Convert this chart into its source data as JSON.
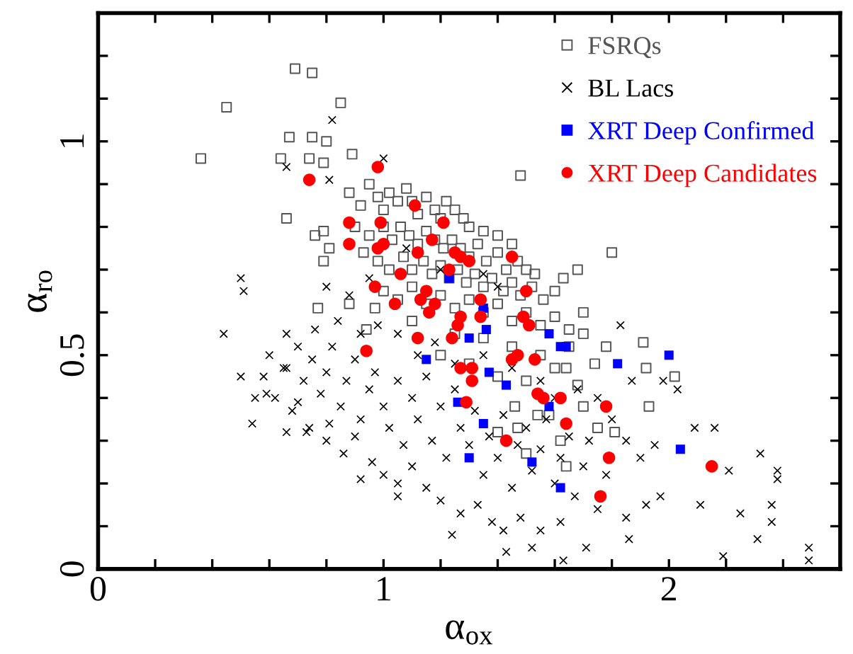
{
  "chart_data": {
    "type": "scatter",
    "xlabel": "α$_{ox}$",
    "ylabel": "α$_{ro}$",
    "xlim": [
      0,
      2.6
    ],
    "ylim": [
      0,
      1.3
    ],
    "xticks": [
      0,
      {
        "value": 0.2,
        "label": null
      },
      {
        "value": 0.4,
        "label": null
      },
      {
        "value": 0.6,
        "label": null
      },
      {
        "value": 0.8,
        "label": null
      },
      1,
      {
        "value": 1.2,
        "label": null
      },
      {
        "value": 1.4,
        "label": null
      },
      {
        "value": 1.6,
        "label": null
      },
      {
        "value": 1.8,
        "label": null
      },
      2,
      {
        "value": 2.2,
        "label": null
      },
      {
        "value": 2.4,
        "label": null
      }
    ],
    "yticks": [
      0,
      {
        "value": 0.1,
        "label": null
      },
      {
        "value": 0.2,
        "label": null
      },
      {
        "value": 0.3,
        "label": null
      },
      {
        "value": 0.4,
        "label": null
      },
      0.5,
      {
        "value": 0.6,
        "label": null
      },
      {
        "value": 0.7,
        "label": null
      },
      {
        "value": 0.8,
        "label": null
      },
      {
        "value": 0.9,
        "label": null
      },
      1,
      {
        "value": 1.1,
        "label": null
      },
      {
        "value": 1.2,
        "label": null
      }
    ],
    "grid": false,
    "legend": "top right",
    "series": [
      {
        "name": "FSRQs",
        "color": "#555555",
        "marker": "square",
        "x": [
          0.36,
          0.45,
          0.69,
          0.75,
          0.85,
          0.67,
          0.75,
          0.8,
          0.64,
          0.74,
          0.79,
          0.89,
          0.66,
          0.76,
          0.79,
          0.81,
          0.79,
          0.77,
          0.94,
          0.88,
          1.48,
          1.8,
          1.68,
          1.63,
          1.91,
          1.92,
          2.02,
          1.93,
          1.81,
          1.78,
          1.74,
          1.7,
          1.64,
          1.54,
          1.47,
          1.64,
          0.88,
          0.92,
          0.95,
          0.98,
          1.0,
          1.02,
          1.05,
          1.08,
          1.1,
          1.12,
          1.15,
          1.18,
          1.2,
          1.22,
          1.25,
          1.28,
          1.3,
          1.35,
          1.4,
          1.45,
          0.9,
          0.95,
          1.0,
          1.03,
          1.06,
          1.09,
          1.12,
          1.15,
          1.18,
          1.21,
          1.24,
          1.27,
          1.3,
          1.33,
          1.36,
          1.4,
          1.43,
          1.47,
          1.5,
          1.53,
          0.93,
          0.98,
          1.02,
          1.07,
          1.1,
          1.14,
          1.17,
          1.2,
          1.23,
          1.26,
          1.29,
          1.32,
          1.35,
          1.38,
          1.42,
          1.45,
          1.48,
          1.52,
          1.56,
          1.6,
          1.0,
          1.05,
          1.1,
          1.15,
          1.2,
          1.25,
          1.3,
          1.35,
          1.4,
          1.45,
          1.5,
          1.55,
          1.6,
          1.65,
          1.25,
          1.35,
          1.45,
          1.55,
          1.65,
          1.7,
          1.3,
          1.4,
          1.5,
          1.6,
          1.68,
          1.1,
          0.97,
          1.2,
          1.46,
          1.58,
          1.7,
          1.75,
          1.62,
          1.5,
          1.4
        ],
        "values": [
          0.96,
          1.08,
          1.17,
          1.16,
          1.09,
          1.01,
          1.01,
          1.0,
          0.96,
          0.96,
          0.95,
          0.97,
          0.82,
          0.78,
          0.79,
          0.75,
          0.72,
          0.61,
          0.56,
          0.62,
          0.92,
          0.74,
          0.7,
          0.68,
          0.53,
          0.47,
          0.45,
          0.38,
          0.32,
          0.52,
          0.48,
          0.6,
          0.47,
          0.36,
          0.33,
          0.24,
          0.88,
          0.85,
          0.9,
          0.87,
          0.84,
          0.88,
          0.86,
          0.89,
          0.86,
          0.83,
          0.87,
          0.84,
          0.82,
          0.86,
          0.84,
          0.82,
          0.8,
          0.79,
          0.78,
          0.76,
          0.8,
          0.78,
          0.8,
          0.77,
          0.8,
          0.78,
          0.76,
          0.79,
          0.77,
          0.75,
          0.77,
          0.75,
          0.73,
          0.76,
          0.72,
          0.74,
          0.7,
          0.72,
          0.7,
          0.69,
          0.74,
          0.72,
          0.7,
          0.73,
          0.7,
          0.72,
          0.69,
          0.71,
          0.68,
          0.7,
          0.67,
          0.69,
          0.66,
          0.68,
          0.65,
          0.67,
          0.64,
          0.66,
          0.63,
          0.65,
          0.65,
          0.63,
          0.66,
          0.62,
          0.64,
          0.61,
          0.63,
          0.6,
          0.62,
          0.58,
          0.6,
          0.57,
          0.59,
          0.56,
          0.55,
          0.54,
          0.52,
          0.5,
          0.52,
          0.55,
          0.48,
          0.45,
          0.44,
          0.47,
          0.43,
          0.58,
          0.61,
          0.5,
          0.38,
          0.36,
          0.38,
          0.33,
          0.3,
          0.27,
          0.32
        ]
      },
      {
        "name": "BL Lacs",
        "color": "#000000",
        "marker": "cross",
        "x": [
          0.5,
          0.51,
          0.44,
          0.5,
          0.54,
          0.82,
          1.0,
          0.66,
          0.81,
          2.32,
          2.38,
          2.38,
          2.49,
          2.49,
          2.31,
          2.25,
          2.11,
          2.19,
          1.63,
          1.71,
          1.24,
          0.92,
          1.05,
          1.42,
          2.21,
          2.16,
          2.09,
          2.03,
          1.98,
          1.83,
          1.87,
          1.85,
          1.86,
          1.92,
          1.97,
          2.36,
          2.36,
          1.95,
          0.66,
          0.73,
          0.66,
          0.59,
          0.55,
          0.7,
          0.81,
          0.6,
          0.65,
          0.7,
          0.72,
          0.75,
          0.78,
          0.8,
          0.82,
          0.85,
          0.87,
          0.9,
          0.92,
          0.95,
          0.97,
          1.0,
          1.02,
          1.05,
          1.07,
          1.1,
          1.12,
          1.15,
          1.17,
          1.2,
          1.22,
          1.25,
          1.27,
          1.3,
          1.32,
          1.35,
          1.37,
          1.4,
          1.42,
          1.45,
          1.47,
          1.5,
          1.52,
          1.55,
          1.57,
          1.6,
          1.62,
          1.65,
          1.67,
          1.7,
          1.72,
          1.75,
          1.78,
          0.68,
          0.74,
          0.8,
          0.86,
          0.9,
          0.96,
          1.0,
          1.05,
          1.1,
          1.15,
          1.2,
          1.27,
          1.33,
          1.38,
          1.48,
          1.55,
          1.62,
          1.52,
          1.43,
          0.62,
          0.58,
          0.66,
          0.76,
          0.84,
          0.92,
          0.98,
          1.05,
          1.12,
          1.18,
          1.25,
          1.35,
          1.45,
          1.55,
          1.6,
          1.68,
          1.75,
          1.8,
          1.85,
          1.9,
          0.88,
          0.95,
          1.08,
          1.2,
          1.35,
          1.4,
          0.8
        ],
        "values": [
          0.68,
          0.65,
          0.55,
          0.45,
          0.34,
          1.05,
          0.96,
          0.94,
          0.91,
          0.27,
          0.23,
          0.21,
          0.05,
          0.02,
          0.07,
          0.13,
          0.15,
          0.03,
          0.02,
          0.05,
          0.08,
          0.21,
          0.17,
          0.09,
          0.23,
          0.33,
          0.33,
          0.42,
          0.44,
          0.57,
          0.44,
          0.12,
          0.07,
          0.15,
          0.17,
          0.15,
          0.11,
          0.29,
          0.32,
          0.32,
          0.47,
          0.41,
          0.4,
          0.39,
          0.34,
          0.5,
          0.47,
          0.52,
          0.44,
          0.49,
          0.41,
          0.46,
          0.52,
          0.38,
          0.44,
          0.49,
          0.35,
          0.42,
          0.46,
          0.38,
          0.33,
          0.44,
          0.29,
          0.4,
          0.35,
          0.45,
          0.3,
          0.38,
          0.26,
          0.42,
          0.33,
          0.29,
          0.37,
          0.22,
          0.31,
          0.26,
          0.36,
          0.19,
          0.29,
          0.33,
          0.23,
          0.28,
          0.35,
          0.2,
          0.26,
          0.31,
          0.17,
          0.24,
          0.3,
          0.14,
          0.22,
          0.37,
          0.33,
          0.3,
          0.27,
          0.31,
          0.25,
          0.22,
          0.2,
          0.24,
          0.19,
          0.16,
          0.13,
          0.15,
          0.11,
          0.12,
          0.09,
          0.11,
          0.05,
          0.04,
          0.4,
          0.45,
          0.55,
          0.56,
          0.58,
          0.55,
          0.57,
          0.55,
          0.5,
          0.53,
          0.48,
          0.5,
          0.47,
          0.44,
          0.4,
          0.42,
          0.4,
          0.35,
          0.3,
          0.26,
          0.64,
          0.68,
          0.75,
          0.7,
          0.69,
          0.66,
          0.66
        ]
      },
      {
        "name": "XRT Deep Confirmed",
        "color": "#0000ff",
        "marker": "square",
        "x": [
          1.23,
          1.35,
          1.36,
          1.3,
          1.58,
          1.62,
          1.64,
          1.15,
          1.82,
          2.0,
          1.37,
          1.43,
          1.26,
          1.58,
          1.35,
          1.3,
          1.52,
          2.04,
          1.62
        ],
        "values": [
          0.68,
          0.61,
          0.56,
          0.54,
          0.55,
          0.52,
          0.52,
          0.49,
          0.48,
          0.5,
          0.46,
          0.43,
          0.39,
          0.38,
          0.34,
          0.26,
          0.25,
          0.28,
          0.19
        ]
      },
      {
        "name": "XRT Deep Candidates",
        "color": "#ff0000",
        "marker": "circle",
        "x": [
          0.98,
          0.74,
          1.11,
          0.88,
          0.99,
          1.21,
          1.17,
          0.88,
          0.98,
          1.0,
          1.12,
          1.25,
          1.27,
          1.3,
          1.45,
          1.23,
          1.06,
          0.97,
          1.5,
          1.15,
          1.13,
          1.34,
          1.04,
          1.18,
          1.16,
          1.27,
          1.34,
          1.49,
          1.26,
          1.51,
          1.12,
          1.24,
          0.94,
          1.47,
          1.45,
          1.53,
          1.27,
          1.31,
          1.31,
          1.54,
          1.56,
          1.62,
          1.29,
          1.78,
          1.64,
          1.43,
          1.79,
          2.15,
          1.76
        ],
        "values": [
          0.94,
          0.91,
          0.85,
          0.81,
          0.81,
          0.81,
          0.77,
          0.76,
          0.75,
          0.76,
          0.74,
          0.74,
          0.73,
          0.72,
          0.73,
          0.7,
          0.69,
          0.66,
          0.65,
          0.65,
          0.63,
          0.63,
          0.62,
          0.62,
          0.6,
          0.59,
          0.59,
          0.59,
          0.57,
          0.57,
          0.54,
          0.54,
          0.51,
          0.5,
          0.49,
          0.49,
          0.47,
          0.47,
          0.44,
          0.41,
          0.4,
          0.4,
          0.39,
          0.38,
          0.34,
          0.3,
          0.26,
          0.24,
          0.17
        ]
      }
    ]
  }
}
